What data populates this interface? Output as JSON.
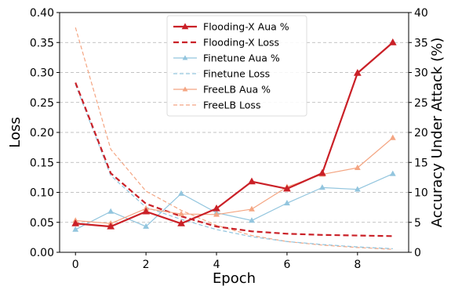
{
  "chart_data": {
    "type": "line",
    "title": "",
    "xlabel": "Epoch",
    "ylabel_left": "Loss",
    "ylabel_right": "Accuracy Under Attack (%)",
    "x": [
      0,
      1,
      2,
      3,
      4,
      5,
      6,
      7,
      8,
      9
    ],
    "xlim": [
      -0.45,
      9.45
    ],
    "ylim_left": [
      0,
      0.4
    ],
    "ylim_right": [
      0,
      40
    ],
    "xticks": [
      "0",
      "2",
      "4",
      "6",
      "8"
    ],
    "yticks_left": [
      "0.00",
      "0.05",
      "0.10",
      "0.15",
      "0.20",
      "0.25",
      "0.30",
      "0.35",
      "0.40"
    ],
    "yticks_right": [
      "0",
      "5",
      "10",
      "15",
      "20",
      "25",
      "30",
      "35",
      "40"
    ],
    "grid": "horizontal-dashed",
    "legend_position": "top-center",
    "series": [
      {
        "name": "FreeLB Loss",
        "axis": "left",
        "color": "#f4a582",
        "style": "dashed",
        "marker": "none",
        "width": 1.2,
        "values": [
          0.375,
          0.172,
          0.102,
          0.07,
          0.045,
          0.028,
          0.018,
          0.012,
          0.008,
          0.005
        ]
      },
      {
        "name": "Finetune Loss",
        "axis": "left",
        "color": "#92c5de",
        "style": "dashed",
        "marker": "none",
        "width": 1.2,
        "values": [
          0.28,
          0.128,
          0.075,
          0.055,
          0.038,
          0.026,
          0.018,
          0.013,
          0.009,
          0.006
        ]
      },
      {
        "name": "Flooding-X Loss",
        "axis": "left",
        "color": "#ca2027",
        "style": "dashed",
        "marker": "none",
        "width": 2.2,
        "values": [
          0.283,
          0.132,
          0.081,
          0.06,
          0.043,
          0.035,
          0.031,
          0.029,
          0.028,
          0.027
        ]
      },
      {
        "name": "Finetune Aua %",
        "axis": "right",
        "color": "#92c5de",
        "style": "solid",
        "marker": "triangle",
        "width": 1.2,
        "values": [
          3.8,
          6.8,
          4.3,
          9.8,
          6.6,
          5.3,
          8.2,
          10.8,
          10.5,
          13.1
        ]
      },
      {
        "name": "FreeLB Aua %",
        "axis": "right",
        "color": "#f4a582",
        "style": "solid",
        "marker": "triangle",
        "width": 1.2,
        "values": [
          5.3,
          4.8,
          7.3,
          6.4,
          6.3,
          7.2,
          10.9,
          13.0,
          14.1,
          19.1
        ]
      },
      {
        "name": "Flooding-X Aua %",
        "axis": "right",
        "color": "#ca2027",
        "style": "solid",
        "marker": "triangle",
        "width": 2.2,
        "values": [
          4.8,
          4.3,
          6.8,
          4.8,
          7.3,
          11.8,
          10.6,
          13.2,
          29.9,
          35.0
        ]
      }
    ],
    "legend": [
      {
        "label": "Flooding-X Aua %",
        "series": "Flooding-X Aua %"
      },
      {
        "label": "Flooding-X Loss",
        "series": "Flooding-X Loss"
      },
      {
        "label": "Finetune Aua %",
        "series": "Finetune Aua %"
      },
      {
        "label": "Finetune Loss",
        "series": "Finetune Loss"
      },
      {
        "label": "FreeLB Aua %",
        "series": "FreeLB Aua %"
      },
      {
        "label": "FreeLB Loss",
        "series": "FreeLB Loss"
      }
    ]
  }
}
